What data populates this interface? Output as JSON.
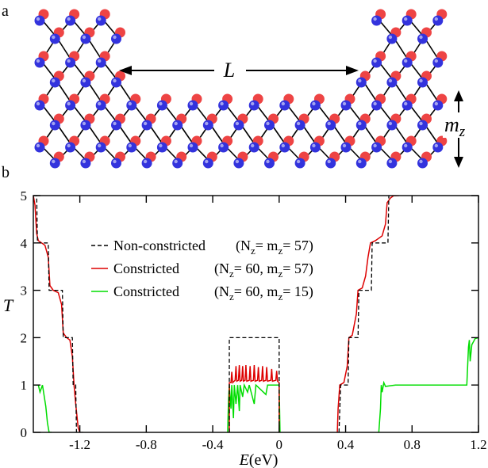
{
  "panels": {
    "a_label": "a",
    "b_label": "b"
  },
  "schematic": {
    "length_label": "L",
    "thickness_label": "m",
    "thickness_subscript": "z",
    "atom_colors": {
      "top": "#ee4444",
      "bottom": "#3333dd"
    }
  },
  "chart_data": {
    "type": "line",
    "xlabel": "E(eV)",
    "ylabel": "T",
    "xlim": [
      -1.48,
      1.2
    ],
    "ylim": [
      0,
      5
    ],
    "xticks": [
      -1.2,
      -0.8,
      -0.4,
      0,
      0.4,
      0.8,
      1.2
    ],
    "xtick_labels": [
      "-1.2",
      "-0.8",
      "-0.4",
      "0",
      "0.4",
      "0.8",
      "1.2"
    ],
    "yticks": [
      0,
      1,
      2,
      3,
      4,
      5
    ],
    "ytick_labels": [
      "0",
      "1",
      "2",
      "3",
      "4",
      "5"
    ],
    "legend_position": "upper-center",
    "legend": [
      {
        "name": "Non-constricted",
        "params": "(N",
        "sub1": "z",
        "mid": "= m",
        "sub2": "z",
        "tail": "= 57)",
        "color": "#000000",
        "style": "dashed"
      },
      {
        "name": "Constricted",
        "params": "(N",
        "sub1": "z",
        "mid": "= 60, m",
        "sub2": "z",
        "tail": "= 57)",
        "color": "#dd0000",
        "style": "solid"
      },
      {
        "name": "Constricted",
        "params": "(N",
        "sub1": "z",
        "mid": "= 60, m",
        "sub2": "z",
        "tail": "= 15)",
        "color": "#00dd00",
        "style": "solid"
      }
    ],
    "series": [
      {
        "name": "Non-constricted",
        "color": "#000000",
        "segments": [
          [
            [
              -1.48,
              5
            ],
            [
              -1.46,
              5
            ],
            [
              -1.455,
              4
            ],
            [
              -1.39,
              4
            ],
            [
              -1.385,
              3
            ],
            [
              -1.305,
              3
            ],
            [
              -1.3,
              2
            ],
            [
              -1.245,
              2
            ],
            [
              -1.24,
              1
            ],
            [
              -1.225,
              1
            ],
            [
              -1.22,
              0
            ],
            [
              -1.18,
              0
            ]
          ],
          [
            [
              -0.3,
              0
            ],
            [
              -0.3,
              2
            ],
            [
              0,
              2
            ],
            [
              0,
              0
            ]
          ],
          [
            [
              0.36,
              0
            ],
            [
              0.37,
              1
            ],
            [
              0.415,
              1
            ],
            [
              0.42,
              2
            ],
            [
              0.475,
              2
            ],
            [
              0.48,
              3
            ],
            [
              0.555,
              3
            ],
            [
              0.56,
              4
            ],
            [
              0.655,
              4
            ],
            [
              0.66,
              5
            ],
            [
              0.72,
              5
            ]
          ]
        ]
      },
      {
        "name": "Constricted (N=60, m=57)",
        "color": "#dd0000",
        "segments": [
          [
            [
              -1.48,
              5
            ],
            [
              -1.47,
              4.8
            ],
            [
              -1.46,
              4.2
            ],
            [
              -1.45,
              4.05
            ],
            [
              -1.43,
              4.0
            ],
            [
              -1.41,
              3.95
            ],
            [
              -1.39,
              3.7
            ],
            [
              -1.38,
              3.1
            ],
            [
              -1.36,
              3.0
            ],
            [
              -1.33,
              2.95
            ],
            [
              -1.31,
              2.7
            ],
            [
              -1.3,
              2.1
            ],
            [
              -1.28,
              2.0
            ],
            [
              -1.26,
              1.95
            ],
            [
              -1.245,
              1.6
            ],
            [
              -1.235,
              1.0
            ],
            [
              -1.225,
              0.6
            ],
            [
              -1.21,
              0.1
            ],
            [
              -1.2,
              0
            ]
          ],
          [
            [
              -0.3,
              0
            ],
            [
              -0.3,
              1.05
            ],
            [
              -0.29,
              1.05
            ],
            [
              -0.285,
              1.28
            ],
            [
              -0.28,
              1.05
            ],
            [
              -0.265,
              1.1
            ],
            [
              -0.26,
              1.4
            ],
            [
              -0.255,
              1.08
            ],
            [
              -0.245,
              1.1
            ],
            [
              -0.24,
              1.42
            ],
            [
              -0.235,
              1.08
            ],
            [
              -0.225,
              1.1
            ],
            [
              -0.22,
              1.4
            ],
            [
              -0.215,
              1.08
            ],
            [
              -0.205,
              1.1
            ],
            [
              -0.2,
              1.42
            ],
            [
              -0.195,
              1.08
            ],
            [
              -0.18,
              1.1
            ],
            [
              -0.175,
              1.4
            ],
            [
              -0.17,
              1.08
            ],
            [
              -0.155,
              1.1
            ],
            [
              -0.15,
              1.42
            ],
            [
              -0.145,
              1.08
            ],
            [
              -0.13,
              1.1
            ],
            [
              -0.125,
              1.38
            ],
            [
              -0.12,
              1.08
            ],
            [
              -0.105,
              1.1
            ],
            [
              -0.1,
              1.4
            ],
            [
              -0.095,
              1.08
            ],
            [
              -0.08,
              1.1
            ],
            [
              -0.075,
              1.38
            ],
            [
              -0.07,
              1.08
            ],
            [
              -0.05,
              1.1
            ],
            [
              -0.045,
              1.34
            ],
            [
              -0.04,
              1.08
            ],
            [
              -0.02,
              1.1
            ],
            [
              -0.015,
              1.3
            ],
            [
              -0.01,
              1.08
            ],
            [
              0,
              1.05
            ],
            [
              0,
              0
            ]
          ],
          [
            [
              0.35,
              0
            ],
            [
              0.355,
              0.5
            ],
            [
              0.365,
              1.0
            ],
            [
              0.39,
              1.05
            ],
            [
              0.41,
              1.4
            ],
            [
              0.42,
              2.0
            ],
            [
              0.44,
              2.05
            ],
            [
              0.465,
              2.5
            ],
            [
              0.475,
              3.0
            ],
            [
              0.5,
              3.05
            ],
            [
              0.52,
              3.3
            ],
            [
              0.535,
              3.7
            ],
            [
              0.55,
              4.0
            ],
            [
              0.58,
              4.05
            ],
            [
              0.62,
              4.15
            ],
            [
              0.64,
              4.4
            ],
            [
              0.65,
              4.85
            ],
            [
              0.67,
              4.95
            ],
            [
              0.69,
              5.0
            ],
            [
              0.72,
              5.0
            ]
          ]
        ]
      },
      {
        "name": "Constricted (N=60, m=15)",
        "color": "#00dd00",
        "segments": [
          [
            [
              -1.48,
              1.0
            ],
            [
              -1.45,
              1.0
            ],
            [
              -1.44,
              0.85
            ],
            [
              -1.425,
              1.0
            ],
            [
              -1.405,
              0.55
            ],
            [
              -1.395,
              0.2
            ],
            [
              -1.385,
              0.0
            ],
            [
              -1.37,
              0
            ]
          ],
          [
            [
              -0.31,
              0
            ],
            [
              -0.305,
              0.7
            ],
            [
              -0.3,
              1.0
            ],
            [
              -0.29,
              0.5
            ],
            [
              -0.285,
              1.0
            ],
            [
              -0.275,
              0.3
            ],
            [
              -0.27,
              1.0
            ],
            [
              -0.26,
              0.6
            ],
            [
              -0.25,
              1.0
            ],
            [
              -0.24,
              0.45
            ],
            [
              -0.235,
              1.0
            ],
            [
              -0.22,
              0.75
            ],
            [
              -0.21,
              1.0
            ],
            [
              -0.19,
              0.85
            ],
            [
              -0.18,
              1.0
            ],
            [
              -0.15,
              0.6
            ],
            [
              -0.14,
              1.0
            ],
            [
              -0.08,
              0.8
            ],
            [
              -0.07,
              1.0
            ],
            [
              0,
              1.0
            ],
            [
              0.005,
              0
            ]
          ],
          [
            [
              0.6,
              0
            ],
            [
              0.61,
              0.5
            ],
            [
              0.615,
              1.0
            ],
            [
              0.62,
              0.85
            ],
            [
              0.63,
              1.05
            ],
            [
              0.64,
              0.97
            ],
            [
              0.66,
              0.98
            ],
            [
              0.7,
              1.0
            ],
            [
              1.13,
              1.0
            ],
            [
              1.14,
              1.8
            ],
            [
              1.145,
              1.95
            ],
            [
              1.15,
              1.5
            ],
            [
              1.16,
              1.85
            ],
            [
              1.18,
              1.98
            ],
            [
              1.2,
              2.0
            ]
          ]
        ]
      }
    ]
  }
}
